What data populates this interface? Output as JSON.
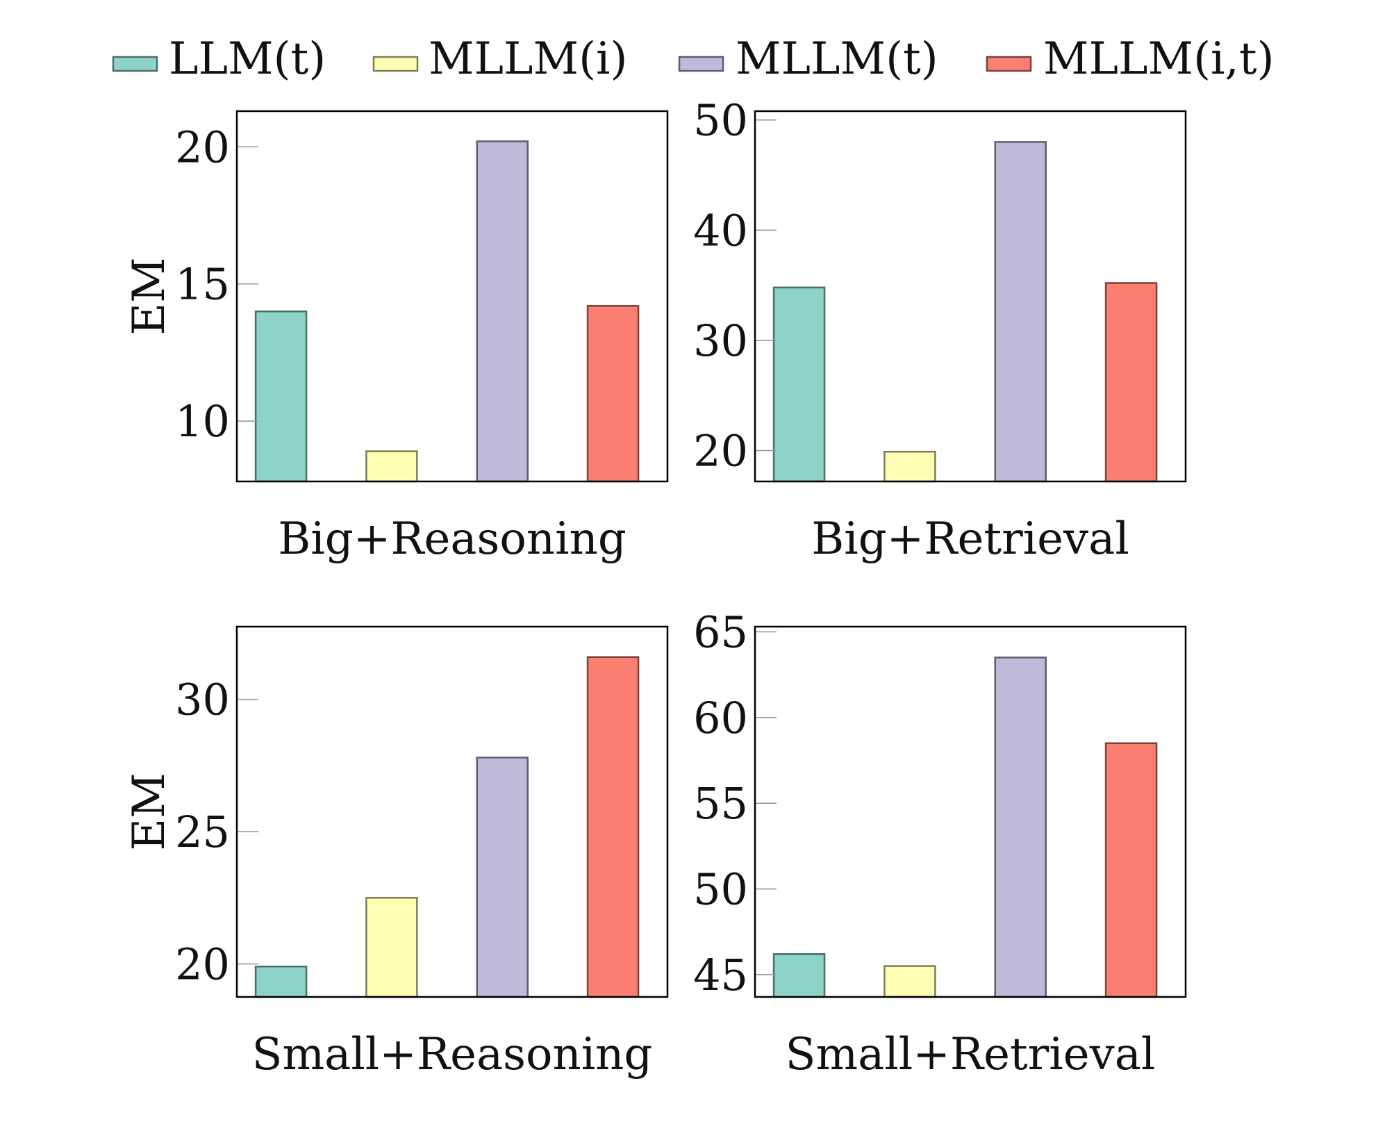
{
  "chart_data": [
    {
      "type": "bar",
      "title": "Big+Reasoning",
      "ylabel": "EM",
      "xlabel": "",
      "categories": [
        "LLM(t)",
        "MLLM(i)",
        "MLLM(t)",
        "MLLM(i,t)"
      ],
      "values": [
        14.0,
        8.9,
        20.2,
        14.2
      ],
      "ylim": [
        7.8,
        21.3
      ],
      "yticks": [
        10,
        15,
        20
      ]
    },
    {
      "type": "bar",
      "title": "Big+Retrieval",
      "ylabel": "",
      "xlabel": "",
      "categories": [
        "LLM(t)",
        "MLLM(i)",
        "MLLM(t)",
        "MLLM(i,t)"
      ],
      "values": [
        34.8,
        19.9,
        48.0,
        35.2
      ],
      "ylim": [
        17.2,
        50.8
      ],
      "yticks": [
        20,
        30,
        40,
        50
      ]
    },
    {
      "type": "bar",
      "title": "Small+Reasoning",
      "ylabel": "EM",
      "xlabel": "",
      "categories": [
        "LLM(t)",
        "MLLM(i)",
        "MLLM(t)",
        "MLLM(i,t)"
      ],
      "values": [
        19.9,
        22.5,
        27.8,
        31.6
      ],
      "ylim": [
        18.75,
        32.75
      ],
      "yticks": [
        20,
        25,
        30
      ]
    },
    {
      "type": "bar",
      "title": "Small+Retrieval",
      "ylabel": "",
      "xlabel": "",
      "categories": [
        "LLM(t)",
        "MLLM(i)",
        "MLLM(t)",
        "MLLM(i,t)"
      ],
      "values": [
        46.2,
        45.5,
        63.5,
        58.5
      ],
      "ylim": [
        43.7,
        65.3
      ],
      "yticks": [
        45,
        50,
        55,
        60,
        65
      ]
    }
  ],
  "legend": {
    "position": "top",
    "entries": [
      {
        "label": "LLM(t)",
        "fill": "#8dd3c7",
        "stroke": "#4a6e68"
      },
      {
        "label": "MLLM(i)",
        "fill": "#ffffb3",
        "stroke": "#7d7d58"
      },
      {
        "label": "MLLM(t)",
        "fill": "#bebada",
        "stroke": "#5f5d6d"
      },
      {
        "label": "MLLM(i,t)",
        "fill": "#fb8072",
        "stroke": "#7d4039"
      }
    ]
  }
}
